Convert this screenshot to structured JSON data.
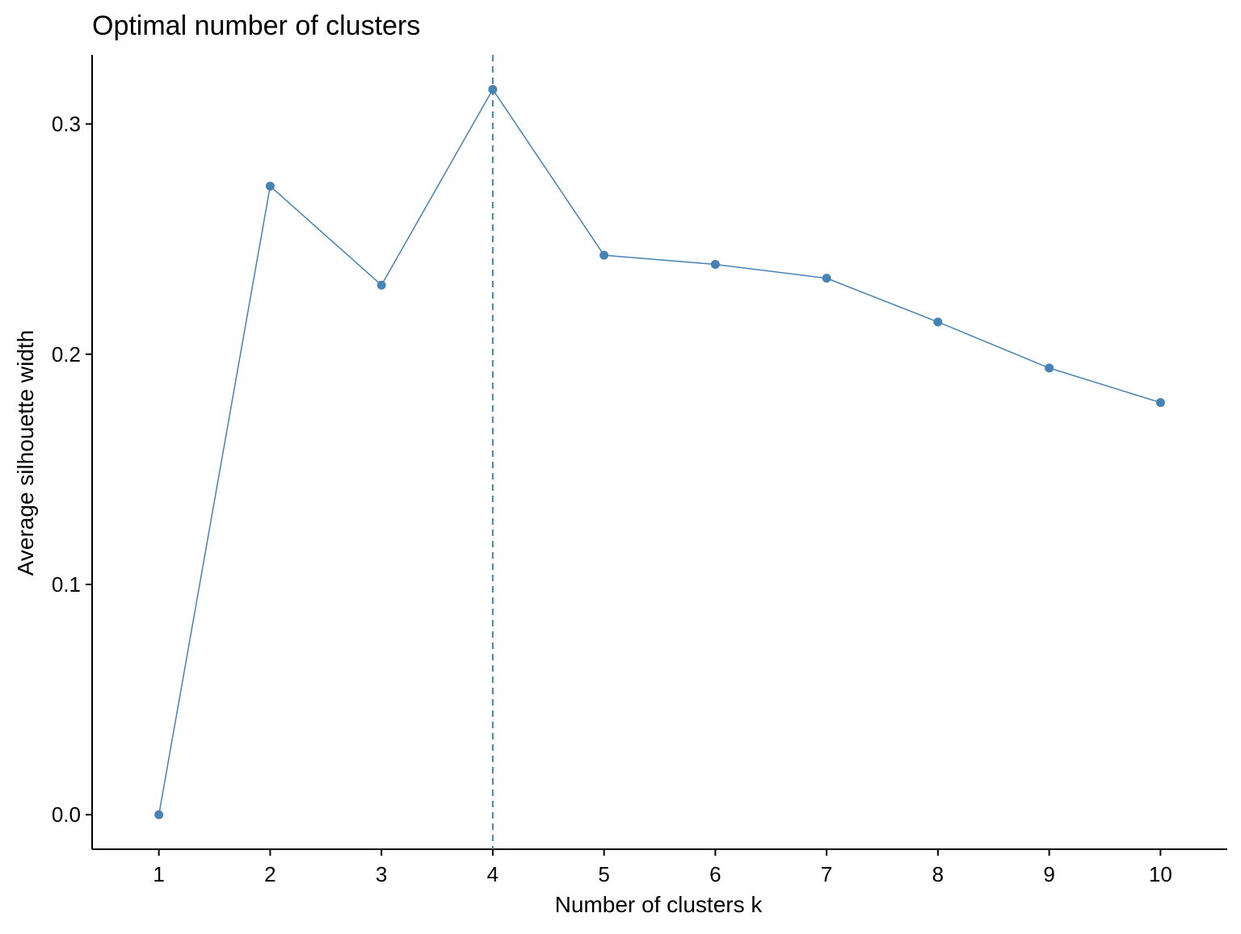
{
  "chart_data": {
    "type": "line",
    "title": "Optimal number of clusters",
    "xlabel": "Number of clusters k",
    "ylabel": "Average silhouette width",
    "x": [
      1,
      2,
      3,
      4,
      5,
      6,
      7,
      8,
      9,
      10
    ],
    "x_tick_labels": [
      "1",
      "2",
      "3",
      "4",
      "5",
      "6",
      "7",
      "8",
      "9",
      "10"
    ],
    "y_ticks": [
      0.0,
      0.1,
      0.2,
      0.3
    ],
    "y_tick_labels": [
      "0.0",
      "0.1",
      "0.2",
      "0.3"
    ],
    "series": [
      {
        "values": [
          0.0,
          0.273,
          0.23,
          0.315,
          0.243,
          0.239,
          0.233,
          0.214,
          0.194,
          0.179
        ]
      }
    ],
    "xlim": [
      0.4,
      10.6
    ],
    "ylim": [
      -0.015,
      0.33
    ],
    "optimal_k": 4,
    "grid": false,
    "colors": {
      "line": "#4682b4",
      "axis": "#000000"
    }
  }
}
